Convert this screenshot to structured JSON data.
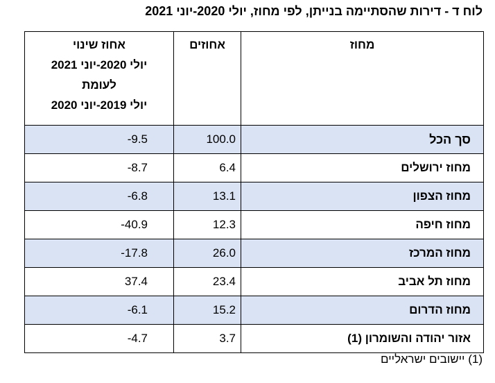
{
  "title": "לוח ד - דירות שהסתיימה בנייתן, לפי מחוז, יולי 2020-יוני 2021",
  "table": {
    "header": {
      "district": "מחוז",
      "percent": "אחוזים",
      "change": [
        "אחוז שינוי",
        "יולי 2020-יוני 2021",
        "לעומת",
        "יולי 2019-יוני 2020"
      ]
    },
    "rows": [
      [
        "סך הכל",
        "100.0",
        "-9.5"
      ],
      [
        "מחוז ירושלים",
        "6.4",
        "-8.7"
      ],
      [
        "מחוז הצפון",
        "13.1",
        "-6.8"
      ],
      [
        "מחוז חיפה",
        "12.3",
        "-40.9"
      ],
      [
        "מחוז המרכז",
        "26.0",
        "-17.8"
      ],
      [
        "מחוז תל אביב",
        "23.4",
        "37.4"
      ],
      [
        "מחוז הדרום",
        "15.2",
        "-6.1"
      ],
      [
        "אזור יהודה והשומרון (1)",
        "3.7",
        "-4.7"
      ]
    ]
  },
  "footnote": "(1) יישובים ישראליים"
}
